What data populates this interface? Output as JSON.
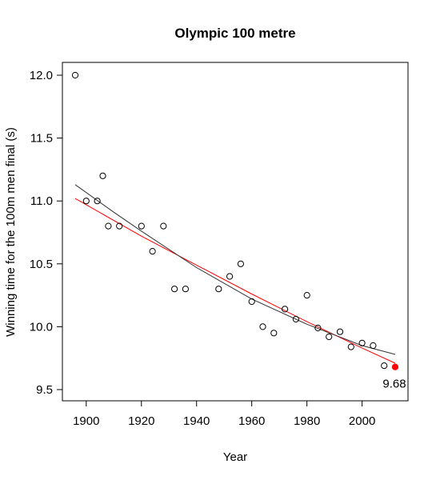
{
  "chart_data": {
    "type": "scatter",
    "title": "Olympic 100 metre",
    "xlabel": "Year",
    "ylabel": "Winning time for the 100m men final (s)",
    "xlim": [
      1896,
      2012
    ],
    "ylim": [
      9.5,
      12.0
    ],
    "x_ticks": [
      "1900",
      "1920",
      "1940",
      "1960",
      "1980",
      "2000"
    ],
    "y_ticks": [
      "9.5",
      "10.0",
      "10.5",
      "11.0",
      "11.5",
      "12.0"
    ],
    "grid": false,
    "series": [
      {
        "marker": "open-circle",
        "color": "#000000",
        "points": [
          [
            1896,
            12.0
          ],
          [
            1900,
            11.0
          ],
          [
            1904,
            11.0
          ],
          [
            1906,
            11.2
          ],
          [
            1908,
            10.8
          ],
          [
            1912,
            10.8
          ],
          [
            1920,
            10.8
          ],
          [
            1924,
            10.6
          ],
          [
            1928,
            10.8
          ],
          [
            1932,
            10.3
          ],
          [
            1936,
            10.3
          ],
          [
            1948,
            10.3
          ],
          [
            1952,
            10.4
          ],
          [
            1956,
            10.5
          ],
          [
            1960,
            10.2
          ],
          [
            1964,
            10.0
          ],
          [
            1968,
            9.95
          ],
          [
            1972,
            10.14
          ],
          [
            1976,
            10.06
          ],
          [
            1980,
            10.25
          ],
          [
            1984,
            9.99
          ],
          [
            1988,
            9.92
          ],
          [
            1992,
            9.96
          ],
          [
            1996,
            9.84
          ],
          [
            2000,
            9.87
          ],
          [
            2004,
            9.85
          ],
          [
            2008,
            9.69
          ]
        ]
      },
      {
        "marker": "filled-circle",
        "color": "#ff0000",
        "points": [
          [
            2012,
            9.68
          ]
        ]
      }
    ],
    "fit_lines": [
      {
        "color": "#ff0000",
        "points": [
          [
            1896,
            11.02
          ],
          [
            1920,
            10.72
          ],
          [
            1940,
            10.49
          ],
          [
            1960,
            10.26
          ],
          [
            1980,
            10.04
          ],
          [
            2000,
            9.83
          ],
          [
            2012,
            9.71
          ]
        ]
      },
      {
        "color": "#333333",
        "points": [
          [
            1896,
            11.13
          ],
          [
            1910,
            10.91
          ],
          [
            1920,
            10.76
          ],
          [
            1940,
            10.47
          ],
          [
            1960,
            10.22
          ],
          [
            1980,
            10.02
          ],
          [
            2000,
            9.85
          ],
          [
            2012,
            9.78
          ]
        ]
      }
    ],
    "annotation": {
      "text": "9.68",
      "x": 2012,
      "y": 9.68
    }
  }
}
